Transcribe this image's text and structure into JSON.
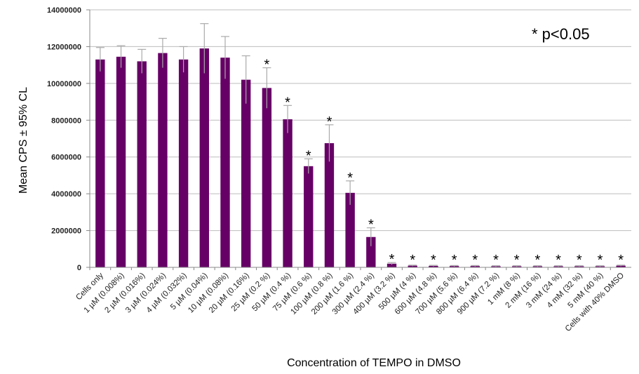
{
  "chart_data": {
    "type": "bar",
    "title": "",
    "xlabel": "Concentration of TEMPO in DMSO",
    "ylabel": "Mean CPS ± 95% CL",
    "ylim": [
      0,
      14000000
    ],
    "yticks": [
      0,
      2000000,
      4000000,
      6000000,
      8000000,
      10000000,
      12000000,
      14000000
    ],
    "ytick_labels": [
      "0",
      "2000000",
      "4000000",
      "6000000",
      "8000000",
      "10000000",
      "12000000",
      "14000000"
    ],
    "grid": true,
    "bar_color": "#660066",
    "error_color": "#aaaaaa",
    "annotation": "* p<0.05",
    "categories": [
      "Cells only",
      "1 µM (0.008%)",
      "2 µM (0.016%)",
      "3 µM (0.024%)",
      "4 µM (0.032%)",
      "5 µM (0.04%)",
      "10 µM (0.08%)",
      "20 µM (0.16%)",
      "25 µM (0.2 %)",
      "50 µM (0.4 %)",
      "75 µM (0.6 %)",
      "100 µM (0.8 %)",
      "200 µM (1.6 %)",
      "300 µM (2.4 %)",
      "400 µM (3.2 %)",
      "500 µM (4 %)",
      "600 µM (4.8 %)",
      "700 µM (5.6 %)",
      "800 µM (6.4 %)",
      "900 µM (7.2 %)",
      "1 mM (8 %)",
      "2 mM (16 %)",
      "3 mM (24 %)",
      "4 mM (32 %)",
      "5 mM (40 %)",
      "Cells with 40% DMSO"
    ],
    "values": [
      11300000,
      11450000,
      11200000,
      11650000,
      11300000,
      11900000,
      11400000,
      10200000,
      9750000,
      8050000,
      5500000,
      6750000,
      4050000,
      1650000,
      200000,
      90000,
      80000,
      70000,
      70000,
      60000,
      60000,
      60000,
      60000,
      60000,
      60000,
      90000
    ],
    "errors": [
      650000,
      600000,
      650000,
      800000,
      700000,
      1350000,
      1150000,
      1300000,
      1100000,
      750000,
      400000,
      1000000,
      650000,
      500000,
      60000,
      30000,
      30000,
      30000,
      30000,
      30000,
      30000,
      30000,
      30000,
      30000,
      30000,
      30000
    ],
    "significant": [
      false,
      false,
      false,
      false,
      false,
      false,
      false,
      false,
      true,
      true,
      true,
      true,
      true,
      true,
      true,
      true,
      true,
      true,
      true,
      true,
      true,
      true,
      true,
      true,
      true,
      true
    ],
    "significance_marker": "*"
  }
}
